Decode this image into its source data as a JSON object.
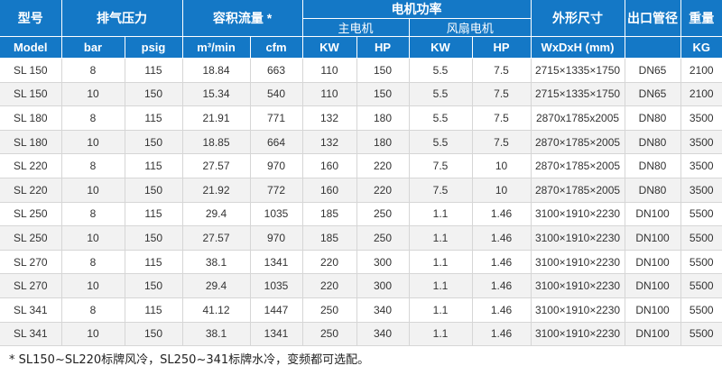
{
  "header": {
    "model": "型号",
    "pressure": "排气压力",
    "flow": "容积流量 *",
    "motor_power": "电机功率",
    "main_motor": "主电机",
    "fan_motor": "风扇电机",
    "dimensions": "外形尺寸",
    "outlet": "出口管径",
    "weight": "重量"
  },
  "units": [
    "Model",
    "bar",
    "psig",
    "m³/min",
    "cfm",
    "KW",
    "HP",
    "KW",
    "HP",
    "WxDxH (mm)",
    "KG"
  ],
  "rows": [
    [
      "SL 150",
      "8",
      "115",
      "18.84",
      "663",
      "110",
      "150",
      "5.5",
      "7.5",
      "2715×1335×1750",
      "DN65",
      "2100"
    ],
    [
      "SL 150",
      "10",
      "150",
      "15.34",
      "540",
      "110",
      "150",
      "5.5",
      "7.5",
      "2715×1335×1750",
      "DN65",
      "2100"
    ],
    [
      "SL 180",
      "8",
      "115",
      "21.91",
      "771",
      "132",
      "180",
      "5.5",
      "7.5",
      "2870x1785x2005",
      "DN80",
      "3500"
    ],
    [
      "SL 180",
      "10",
      "150",
      "18.85",
      "664",
      "132",
      "180",
      "5.5",
      "7.5",
      "2870×1785×2005",
      "DN80",
      "3500"
    ],
    [
      "SL 220",
      "8",
      "115",
      "27.57",
      "970",
      "160",
      "220",
      "7.5",
      "10",
      "2870×1785×2005",
      "DN80",
      "3500"
    ],
    [
      "SL 220",
      "10",
      "150",
      "21.92",
      "772",
      "160",
      "220",
      "7.5",
      "10",
      "2870×1785×2005",
      "DN80",
      "3500"
    ],
    [
      "SL 250",
      "8",
      "115",
      "29.4",
      "1035",
      "185",
      "250",
      "1.1",
      "1.46",
      "3100×1910×2230",
      "DN100",
      "5500"
    ],
    [
      "SL 250",
      "10",
      "150",
      "27.57",
      "970",
      "185",
      "250",
      "1.1",
      "1.46",
      "3100×1910×2230",
      "DN100",
      "5500"
    ],
    [
      "SL 270",
      "8",
      "115",
      "38.1",
      "1341",
      "220",
      "300",
      "1.1",
      "1.46",
      "3100×1910×2230",
      "DN100",
      "5500"
    ],
    [
      "SL 270",
      "10",
      "150",
      "29.4",
      "1035",
      "220",
      "300",
      "1.1",
      "1.46",
      "3100×1910×2230",
      "DN100",
      "5500"
    ],
    [
      "SL 341",
      "8",
      "115",
      "41.12",
      "1447",
      "250",
      "340",
      "1.1",
      "1.46",
      "3100×1910×2230",
      "DN100",
      "5500"
    ],
    [
      "SL 341",
      "10",
      "150",
      "38.1",
      "1341",
      "250",
      "340",
      "1.1",
      "1.46",
      "3100×1910×2230",
      "DN100",
      "5500"
    ]
  ],
  "footnote": "* SL150~SL220标牌风冷，SL250~341标牌水冷，变频都可选配。",
  "colors": {
    "header_bg": "#1478c6",
    "stripe": "#f2f2f2"
  }
}
